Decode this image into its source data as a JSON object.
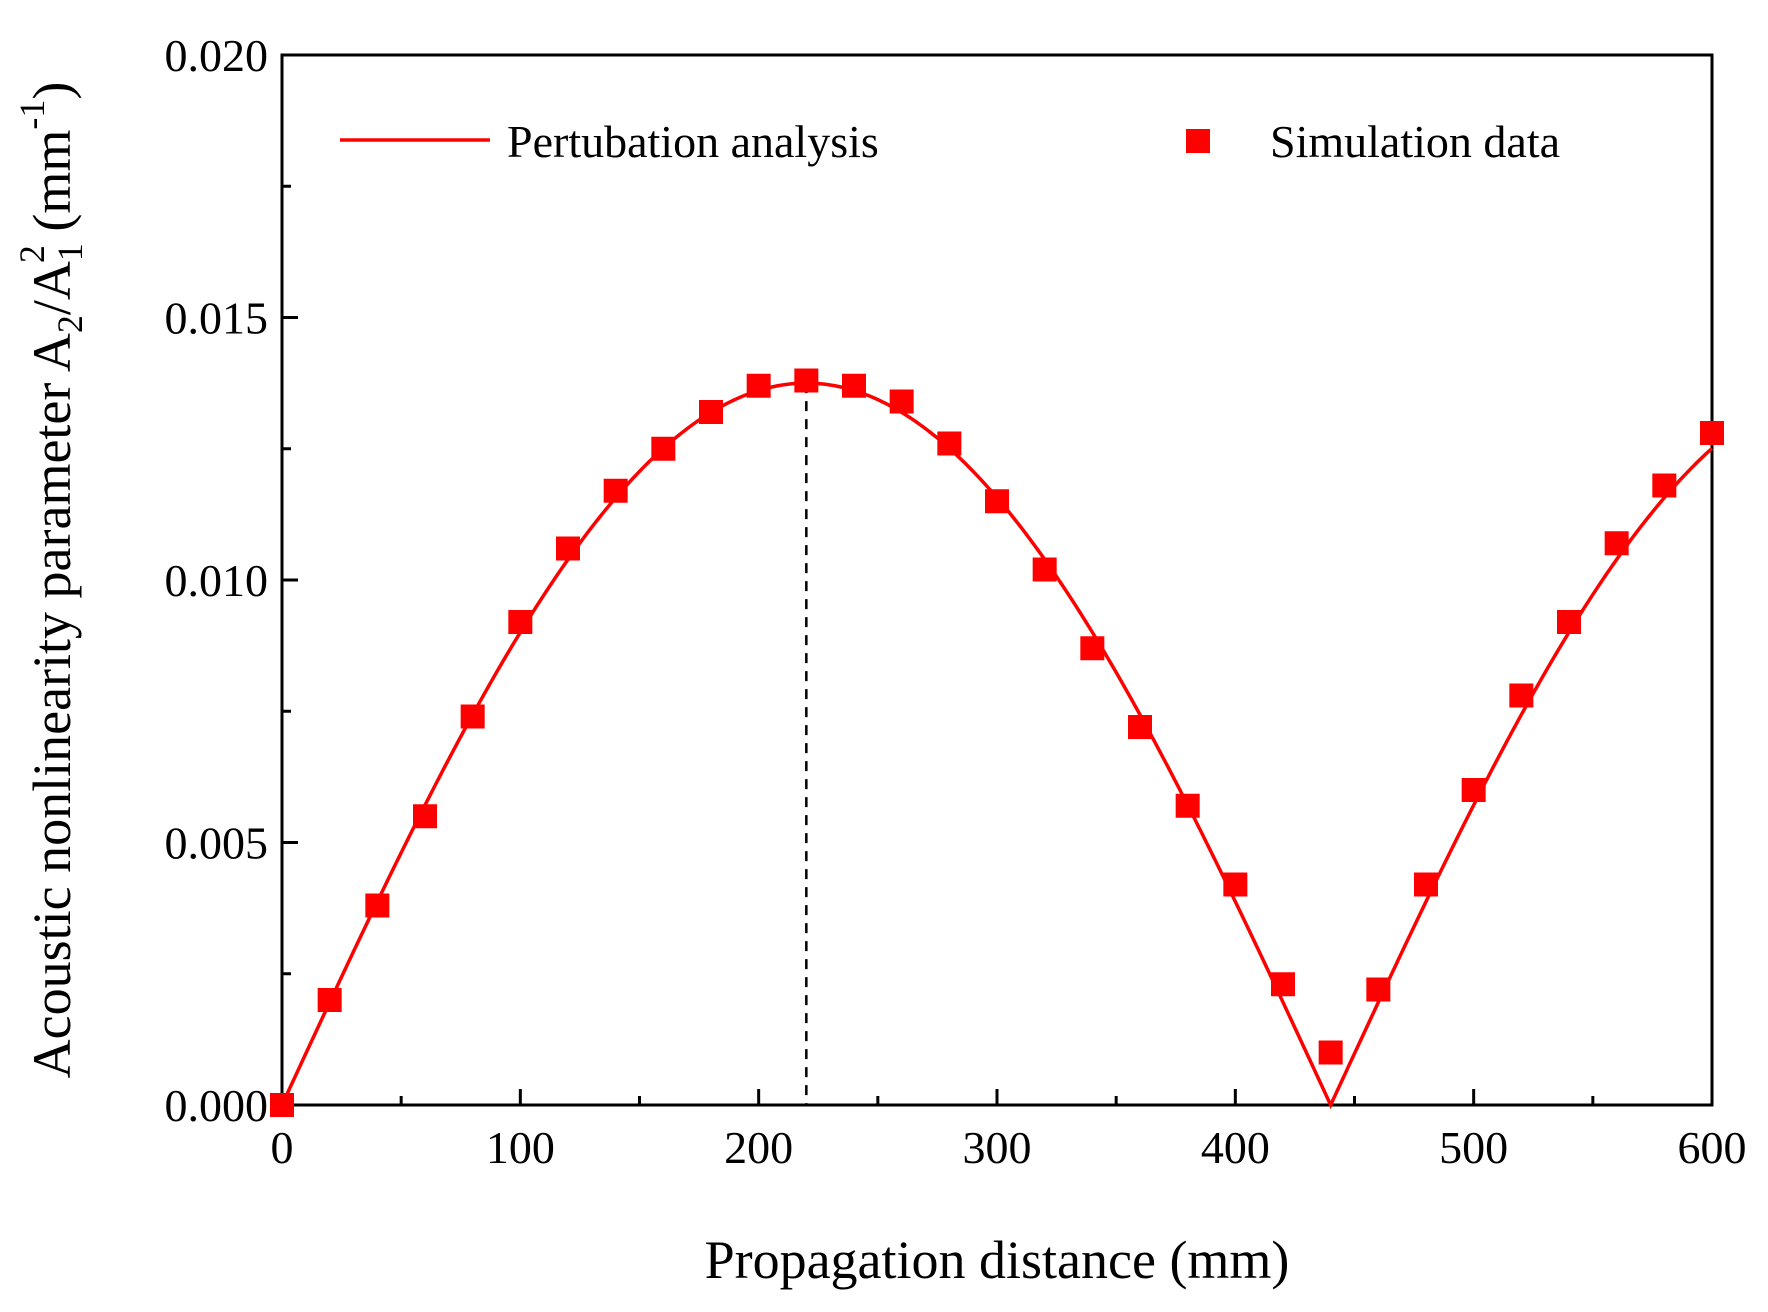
{
  "colors": {
    "series": "#ff0000",
    "axis": "#000000"
  },
  "chart_data": {
    "type": "line",
    "title": "",
    "xlabel": "Propagation distance (mm)",
    "ylabel": {
      "prefix": "Acoustic nonlinearity parameter A",
      "sub2": "2",
      "slash": "/A",
      "sub1": "1",
      "sup2": "2",
      "units_open": " (mm",
      "units_sup": "-1",
      "units_close": ")"
    },
    "xlim": [
      0,
      600
    ],
    "ylim": [
      0,
      0.02
    ],
    "xticks": [
      "0",
      "100",
      "200",
      "300",
      "400",
      "500",
      "600"
    ],
    "yticks": [
      "0.000",
      "0.005",
      "0.010",
      "0.015",
      "0.020"
    ],
    "xtick_values": [
      0,
      100,
      200,
      300,
      400,
      500,
      600
    ],
    "ytick_values": [
      0,
      0.005,
      0.01,
      0.015,
      0.02
    ],
    "peak_marker_x": 220,
    "series": [
      {
        "name": "Pertubation analysis",
        "kind": "line",
        "model": {
          "amplitude": 0.01375,
          "period_half": 440
        }
      },
      {
        "name": "Simulation data",
        "kind": "scatter",
        "marker": "square",
        "x": [
          0,
          20,
          40,
          60,
          80,
          100,
          120,
          140,
          160,
          180,
          200,
          220,
          240,
          260,
          280,
          300,
          320,
          340,
          360,
          380,
          400,
          420,
          440,
          460,
          480,
          500,
          520,
          540,
          560,
          580,
          600
        ],
        "y": [
          0.0,
          0.002,
          0.0038,
          0.0055,
          0.0074,
          0.0092,
          0.0106,
          0.0117,
          0.0125,
          0.0132,
          0.0137,
          0.0138,
          0.0137,
          0.0134,
          0.0126,
          0.0115,
          0.0102,
          0.0087,
          0.0072,
          0.0057,
          0.0042,
          0.0023,
          0.001,
          0.0022,
          0.0042,
          0.006,
          0.0078,
          0.0092,
          0.0107,
          0.0118,
          0.0128
        ]
      }
    ],
    "legend": "top"
  }
}
